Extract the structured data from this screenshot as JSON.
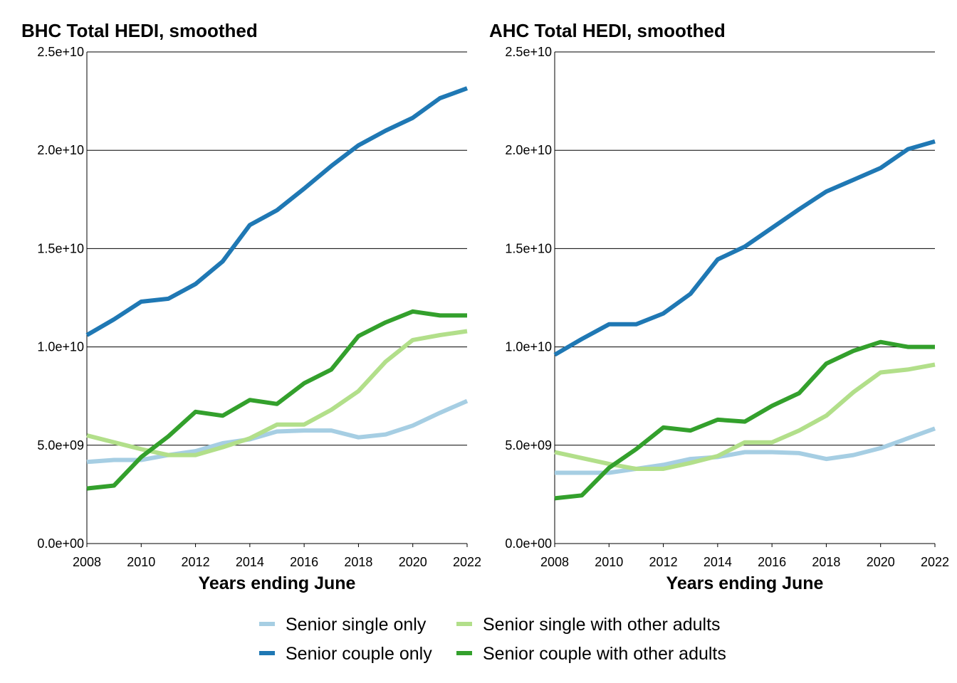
{
  "chart_data": [
    {
      "type": "line",
      "title": "BHC Total HEDI, smoothed",
      "xlabel": "Years ending June",
      "ylabel": "",
      "xlim": [
        2008,
        2022
      ],
      "ylim": [
        0,
        25000000000
      ],
      "x_ticks": [
        2008,
        2010,
        2012,
        2014,
        2016,
        2018,
        2020,
        2022
      ],
      "y_ticks": [
        0,
        5000000000,
        10000000000,
        15000000000,
        20000000000,
        25000000000
      ],
      "y_tick_labels": [
        "0.0e+00",
        "5.0e+09",
        "1.0e+10",
        "1.5e+10",
        "2.0e+10",
        "2.5e+10"
      ],
      "grid": "horizontal",
      "x": [
        2008,
        2009,
        2010,
        2011,
        2012,
        2013,
        2014,
        2015,
        2016,
        2017,
        2018,
        2019,
        2020,
        2021,
        2022
      ],
      "series": [
        {
          "name": "Senior single only",
          "color": "#a6cee3",
          "values": [
            4150000000,
            4250000000,
            4250000000,
            4500000000,
            4700000000,
            5100000000,
            5300000000,
            5700000000,
            5750000000,
            5750000000,
            5400000000,
            5550000000,
            6000000000,
            6650000000,
            7250000000
          ]
        },
        {
          "name": "Senior couple only",
          "color": "#1f78b4",
          "values": [
            10600000000,
            11400000000,
            12300000000,
            12450000000,
            13200000000,
            14350000000,
            16200000000,
            16950000000,
            18050000000,
            19200000000,
            20250000000,
            21000000000,
            21650000000,
            22650000000,
            23150000000
          ]
        },
        {
          "name": "Senior single with other adults",
          "color": "#b2df8a",
          "values": [
            5500000000,
            5150000000,
            4800000000,
            4500000000,
            4500000000,
            4900000000,
            5350000000,
            6050000000,
            6050000000,
            6800000000,
            7750000000,
            9250000000,
            10350000000,
            10600000000,
            10800000000
          ]
        },
        {
          "name": "Senior couple with other adults",
          "color": "#33a02c",
          "values": [
            2800000000,
            2950000000,
            4400000000,
            5450000000,
            6700000000,
            6500000000,
            7300000000,
            7100000000,
            8150000000,
            8850000000,
            10550000000,
            11250000000,
            11800000000,
            11600000000,
            11600000000
          ]
        }
      ]
    },
    {
      "type": "line",
      "title": "AHC Total HEDI, smoothed",
      "xlabel": "Years ending June",
      "ylabel": "",
      "xlim": [
        2008,
        2022
      ],
      "ylim": [
        0,
        25000000000
      ],
      "x_ticks": [
        2008,
        2010,
        2012,
        2014,
        2016,
        2018,
        2020,
        2022
      ],
      "y_ticks": [
        0,
        5000000000,
        10000000000,
        15000000000,
        20000000000,
        25000000000
      ],
      "y_tick_labels": [
        "0.0e+00",
        "5.0e+09",
        "1.0e+10",
        "1.5e+10",
        "2.0e+10",
        "2.5e+10"
      ],
      "grid": "horizontal",
      "x": [
        2008,
        2009,
        2010,
        2011,
        2012,
        2013,
        2014,
        2015,
        2016,
        2017,
        2018,
        2019,
        2020,
        2021,
        2022
      ],
      "series": [
        {
          "name": "Senior single only",
          "color": "#a6cee3",
          "values": [
            3600000000,
            3600000000,
            3600000000,
            3800000000,
            4000000000,
            4300000000,
            4400000000,
            4650000000,
            4650000000,
            4600000000,
            4300000000,
            4500000000,
            4850000000,
            5350000000,
            5850000000
          ]
        },
        {
          "name": "Senior couple only",
          "color": "#1f78b4",
          "values": [
            9600000000,
            10400000000,
            11150000000,
            11150000000,
            11700000000,
            12700000000,
            14450000000,
            15100000000,
            16050000000,
            17000000000,
            17900000000,
            18500000000,
            19100000000,
            20050000000,
            20450000000
          ]
        },
        {
          "name": "Senior single with other adults",
          "color": "#b2df8a",
          "values": [
            4650000000,
            4350000000,
            4050000000,
            3800000000,
            3800000000,
            4100000000,
            4450000000,
            5150000000,
            5150000000,
            5750000000,
            6500000000,
            7700000000,
            8700000000,
            8850000000,
            9100000000
          ]
        },
        {
          "name": "Senior couple with other adults",
          "color": "#33a02c",
          "values": [
            2300000000,
            2450000000,
            3850000000,
            4800000000,
            5900000000,
            5750000000,
            6300000000,
            6200000000,
            7000000000,
            7650000000,
            9150000000,
            9800000000,
            10250000000,
            10000000000,
            10000000000
          ]
        }
      ]
    }
  ],
  "legend": {
    "placement": "bottom",
    "items": [
      {
        "label": "Senior single only",
        "color": "#a6cee3"
      },
      {
        "label": "Senior single with other adults",
        "color": "#b2df8a"
      },
      {
        "label": "Senior couple only",
        "color": "#1f78b4"
      },
      {
        "label": "Senior couple with other adults",
        "color": "#33a02c"
      }
    ]
  }
}
